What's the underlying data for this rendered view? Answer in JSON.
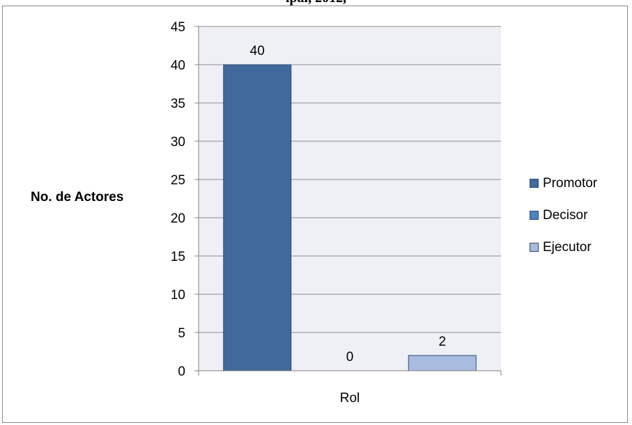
{
  "header_fragment": "ipal, 2012,",
  "chart_data": {
    "type": "bar",
    "title": "",
    "xlabel": "Rol",
    "ylabel": "No. de Actores",
    "ylim": [
      0,
      45
    ],
    "yticks": [
      0,
      5,
      10,
      15,
      20,
      25,
      30,
      35,
      40,
      45
    ],
    "grid": true,
    "legend_position": "right",
    "series": [
      {
        "name": "Promotor",
        "values": [
          40
        ],
        "color": "#41699b"
      },
      {
        "name": "Decisor",
        "values": [
          0
        ],
        "color": "#4f81bd"
      },
      {
        "name": "Ejecutor",
        "values": [
          2
        ],
        "color": "#a9bbde"
      }
    ]
  }
}
